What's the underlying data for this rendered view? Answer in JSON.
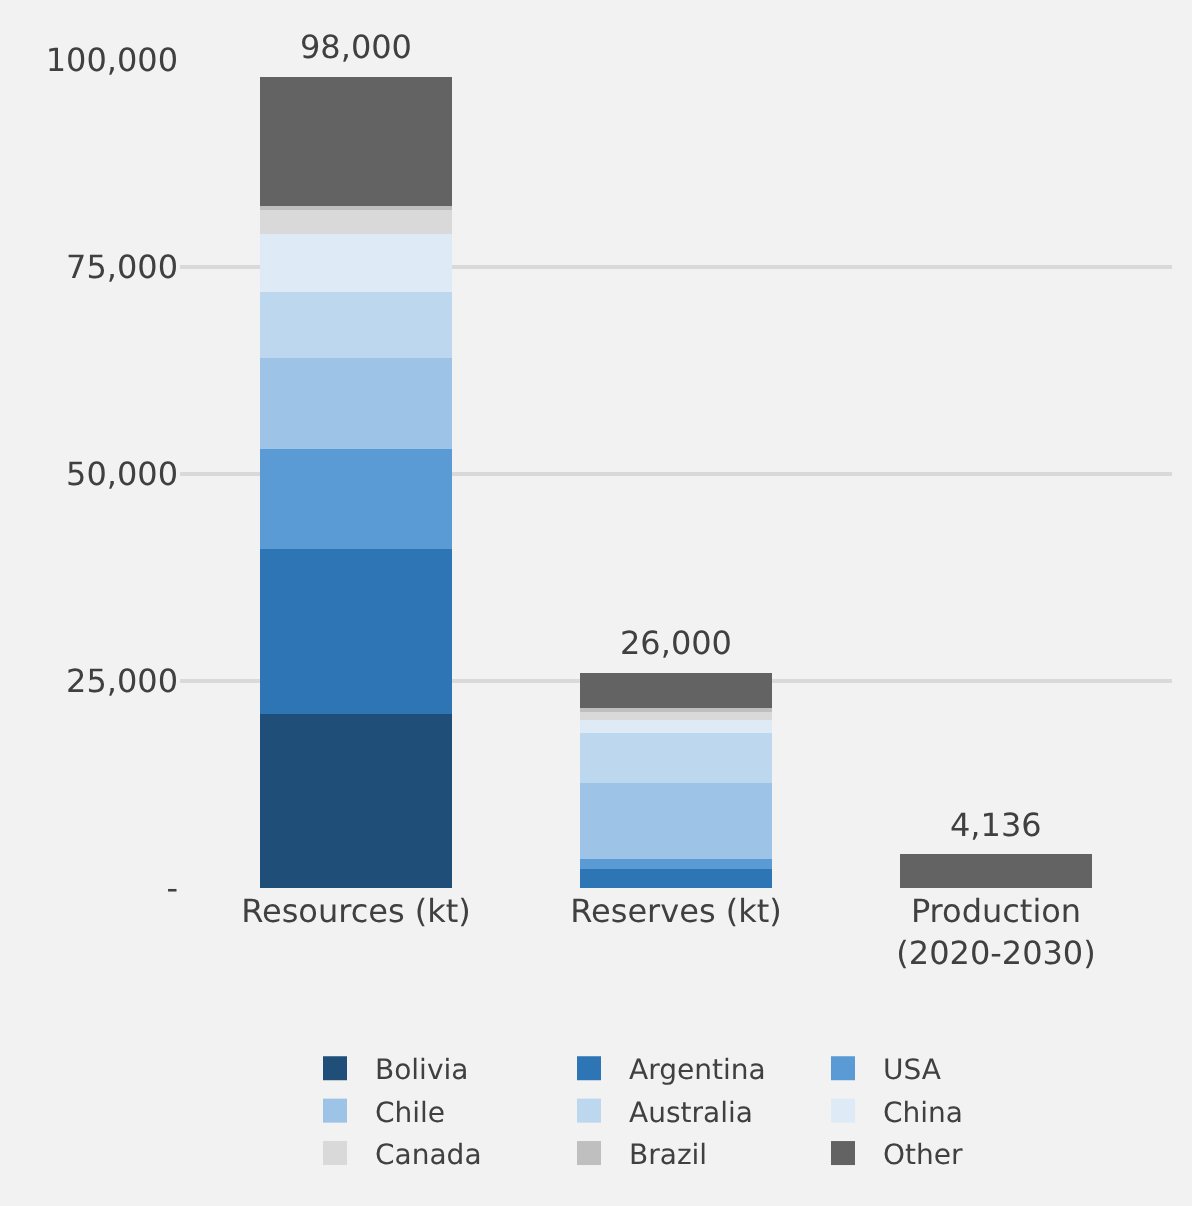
{
  "chart_data": {
    "type": "bar",
    "stacked": true,
    "categories": [
      "Resources (kt)",
      "Reserves (kt)",
      "Production (2020-2030)"
    ],
    "series": [
      {
        "name": "Bolivia",
        "color": "#1f4e79",
        "values": [
          21000,
          0,
          0
        ]
      },
      {
        "name": "Argentina",
        "color": "#2e75b6",
        "values": [
          20000,
          2300,
          0
        ]
      },
      {
        "name": "USA",
        "color": "#5b9bd5",
        "values": [
          12000,
          1200,
          0
        ]
      },
      {
        "name": "Chile",
        "color": "#9dc3e6",
        "values": [
          11000,
          9200,
          0
        ]
      },
      {
        "name": "Australia",
        "color": "#bdd7ee",
        "values": [
          8000,
          6000,
          0
        ]
      },
      {
        "name": "China",
        "color": "#deebf7",
        "values": [
          7000,
          1600,
          0
        ]
      },
      {
        "name": "Canada",
        "color": "#d9d9d9",
        "values": [
          2900,
          1000,
          0
        ]
      },
      {
        "name": "Brazil",
        "color": "#bfbfbf",
        "values": [
          500,
          500,
          0
        ]
      },
      {
        "name": "Other",
        "color": "#636363",
        "values": [
          15600,
          4200,
          4136
        ]
      }
    ],
    "totals": [
      "98,000",
      "26,000",
      "4,136"
    ],
    "ylim": [
      0,
      100000
    ],
    "yticks": [
      {
        "value": 0,
        "label": "-"
      },
      {
        "value": 25000,
        "label": "25,000"
      },
      {
        "value": 50000,
        "label": "50,000"
      },
      {
        "value": 75000,
        "label": "75,000"
      },
      {
        "value": 100000,
        "label": "100,000"
      }
    ],
    "grid": "y",
    "legend": "bottom"
  }
}
